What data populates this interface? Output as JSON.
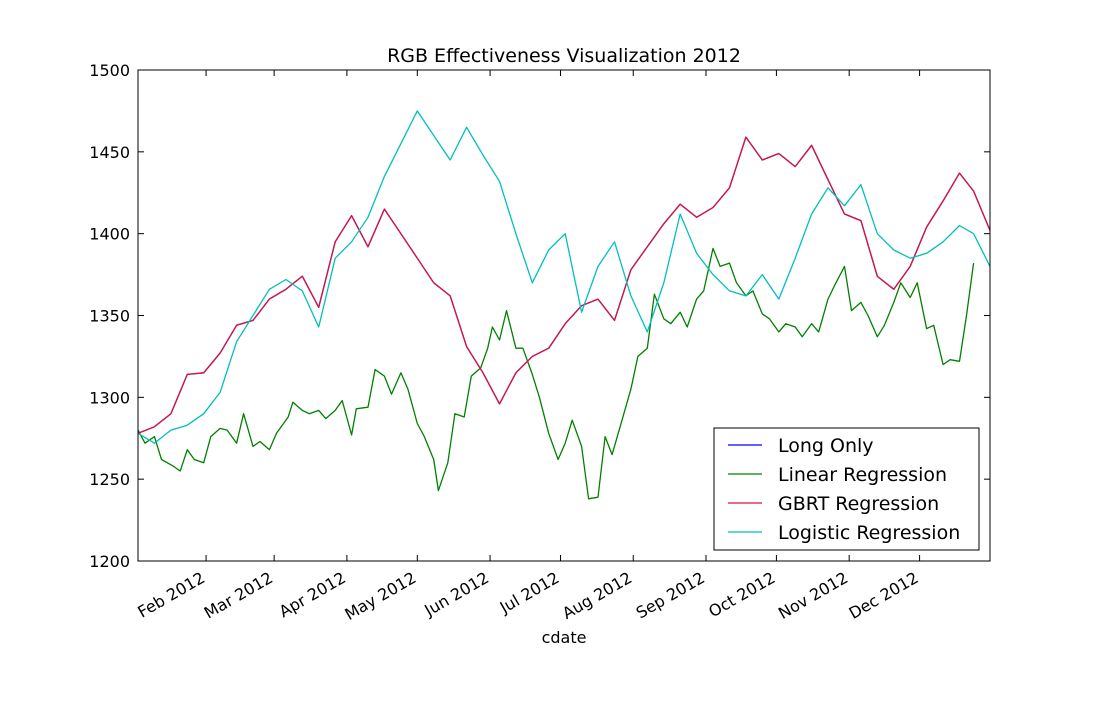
{
  "chart_data": {
    "type": "line",
    "title": "RGB Effectiveness Visualization 2012",
    "xlabel": "cdate",
    "ylabel": "",
    "ylim": [
      1200,
      1500
    ],
    "xlim": [
      "2012-01-03",
      "2012-12-31"
    ],
    "yticks": [
      1200,
      1250,
      1300,
      1350,
      1400,
      1450,
      1500
    ],
    "xticks": [
      {
        "date": "2012-02-01",
        "label": "Feb 2012"
      },
      {
        "date": "2012-03-01",
        "label": "Mar 2012"
      },
      {
        "date": "2012-04-01",
        "label": "Apr 2012"
      },
      {
        "date": "2012-05-01",
        "label": "May 2012"
      },
      {
        "date": "2012-06-01",
        "label": "Jun 2012"
      },
      {
        "date": "2012-07-01",
        "label": "Jul 2012"
      },
      {
        "date": "2012-08-01",
        "label": "Aug 2012"
      },
      {
        "date": "2012-09-01",
        "label": "Sep 2012"
      },
      {
        "date": "2012-10-01",
        "label": "Oct 2012"
      },
      {
        "date": "2012-11-01",
        "label": "Nov 2012"
      },
      {
        "date": "2012-12-01",
        "label": "Dec 2012"
      }
    ],
    "grid": false,
    "legend_position": "lower right",
    "series": [
      {
        "name": "Long Only",
        "color": "#0000ff",
        "points": [
          [
            "2012-01-03",
            1278
          ],
          [
            "2012-01-10",
            1282
          ],
          [
            "2012-01-17",
            1290
          ],
          [
            "2012-01-24",
            1314
          ],
          [
            "2012-01-31",
            1315
          ],
          [
            "2012-02-07",
            1327
          ],
          [
            "2012-02-14",
            1344
          ],
          [
            "2012-02-21",
            1347
          ],
          [
            "2012-02-28",
            1360
          ],
          [
            "2012-03-06",
            1366
          ],
          [
            "2012-03-13",
            1374
          ],
          [
            "2012-03-20",
            1355
          ],
          [
            "2012-03-27",
            1395
          ],
          [
            "2012-04-03",
            1411
          ],
          [
            "2012-04-10",
            1392
          ],
          [
            "2012-04-17",
            1415
          ],
          [
            "2012-04-24",
            1400
          ],
          [
            "2012-05-01",
            1385
          ],
          [
            "2012-05-08",
            1370
          ],
          [
            "2012-05-15",
            1362
          ],
          [
            "2012-05-22",
            1331
          ],
          [
            "2012-05-29",
            1315
          ],
          [
            "2012-06-05",
            1296
          ],
          [
            "2012-06-12",
            1315
          ],
          [
            "2012-06-19",
            1325
          ],
          [
            "2012-06-26",
            1330
          ],
          [
            "2012-07-03",
            1345
          ],
          [
            "2012-07-10",
            1356
          ],
          [
            "2012-07-17",
            1360
          ],
          [
            "2012-07-24",
            1347
          ],
          [
            "2012-07-31",
            1378
          ],
          [
            "2012-08-07",
            1392
          ],
          [
            "2012-08-14",
            1406
          ],
          [
            "2012-08-21",
            1418
          ],
          [
            "2012-08-28",
            1410
          ],
          [
            "2012-09-04",
            1416
          ],
          [
            "2012-09-11",
            1428
          ],
          [
            "2012-09-18",
            1459
          ],
          [
            "2012-09-25",
            1445
          ],
          [
            "2012-10-02",
            1449
          ],
          [
            "2012-10-09",
            1441
          ],
          [
            "2012-10-16",
            1454
          ],
          [
            "2012-10-23",
            1433
          ],
          [
            "2012-10-30",
            1412
          ],
          [
            "2012-11-06",
            1408
          ],
          [
            "2012-11-13",
            1374
          ],
          [
            "2012-11-20",
            1366
          ],
          [
            "2012-11-27",
            1380
          ],
          [
            "2012-12-04",
            1404
          ],
          [
            "2012-12-11",
            1420
          ],
          [
            "2012-12-18",
            1437
          ],
          [
            "2012-12-24",
            1426
          ],
          [
            "2012-12-31",
            1402
          ]
        ]
      },
      {
        "name": "Linear Regression",
        "color": "#008000",
        "points": [
          [
            "2012-01-03",
            1280
          ],
          [
            "2012-01-06",
            1272
          ],
          [
            "2012-01-10",
            1276
          ],
          [
            "2012-01-13",
            1262
          ],
          [
            "2012-01-18",
            1258
          ],
          [
            "2012-01-21",
            1255
          ],
          [
            "2012-01-24",
            1268
          ],
          [
            "2012-01-27",
            1262
          ],
          [
            "2012-01-31",
            1260
          ],
          [
            "2012-02-03",
            1276
          ],
          [
            "2012-02-07",
            1281
          ],
          [
            "2012-02-10",
            1280
          ],
          [
            "2012-02-14",
            1272
          ],
          [
            "2012-02-17",
            1290
          ],
          [
            "2012-02-21",
            1270
          ],
          [
            "2012-02-24",
            1273
          ],
          [
            "2012-02-28",
            1268
          ],
          [
            "2012-03-02",
            1278
          ],
          [
            "2012-03-07",
            1288
          ],
          [
            "2012-03-09",
            1297
          ],
          [
            "2012-03-13",
            1292
          ],
          [
            "2012-03-16",
            1290
          ],
          [
            "2012-03-20",
            1292
          ],
          [
            "2012-03-23",
            1287
          ],
          [
            "2012-03-27",
            1292
          ],
          [
            "2012-03-30",
            1298
          ],
          [
            "2012-04-03",
            1277
          ],
          [
            "2012-04-05",
            1293
          ],
          [
            "2012-04-10",
            1294
          ],
          [
            "2012-04-13",
            1317
          ],
          [
            "2012-04-17",
            1313
          ],
          [
            "2012-04-20",
            1302
          ],
          [
            "2012-04-24",
            1315
          ],
          [
            "2012-04-27",
            1305
          ],
          [
            "2012-05-01",
            1284
          ],
          [
            "2012-05-04",
            1276
          ],
          [
            "2012-05-08",
            1262
          ],
          [
            "2012-05-10",
            1243
          ],
          [
            "2012-05-14",
            1260
          ],
          [
            "2012-05-17",
            1290
          ],
          [
            "2012-05-21",
            1288
          ],
          [
            "2012-05-24",
            1313
          ],
          [
            "2012-05-28",
            1318
          ],
          [
            "2012-05-31",
            1330
          ],
          [
            "2012-06-02",
            1343
          ],
          [
            "2012-06-05",
            1335
          ],
          [
            "2012-06-08",
            1353
          ],
          [
            "2012-06-12",
            1330
          ],
          [
            "2012-06-15",
            1330
          ],
          [
            "2012-06-19",
            1314
          ],
          [
            "2012-06-22",
            1300
          ],
          [
            "2012-06-26",
            1278
          ],
          [
            "2012-06-30",
            1262
          ],
          [
            "2012-07-03",
            1272
          ],
          [
            "2012-07-06",
            1286
          ],
          [
            "2012-07-10",
            1270
          ],
          [
            "2012-07-13",
            1238
          ],
          [
            "2012-07-17",
            1239
          ],
          [
            "2012-07-20",
            1276
          ],
          [
            "2012-07-23",
            1265
          ],
          [
            "2012-07-27",
            1285
          ],
          [
            "2012-07-31",
            1305
          ],
          [
            "2012-08-03",
            1325
          ],
          [
            "2012-08-07",
            1330
          ],
          [
            "2012-08-10",
            1363
          ],
          [
            "2012-08-14",
            1348
          ],
          [
            "2012-08-17",
            1345
          ],
          [
            "2012-08-21",
            1352
          ],
          [
            "2012-08-24",
            1343
          ],
          [
            "2012-08-28",
            1360
          ],
          [
            "2012-08-31",
            1365
          ],
          [
            "2012-09-04",
            1391
          ],
          [
            "2012-09-07",
            1380
          ],
          [
            "2012-09-11",
            1382
          ],
          [
            "2012-09-14",
            1370
          ],
          [
            "2012-09-18",
            1362
          ],
          [
            "2012-09-21",
            1365
          ],
          [
            "2012-09-25",
            1351
          ],
          [
            "2012-09-28",
            1348
          ],
          [
            "2012-10-02",
            1340
          ],
          [
            "2012-10-05",
            1345
          ],
          [
            "2012-10-09",
            1343
          ],
          [
            "2012-10-12",
            1337
          ],
          [
            "2012-10-16",
            1345
          ],
          [
            "2012-10-19",
            1340
          ],
          [
            "2012-10-23",
            1360
          ],
          [
            "2012-10-26",
            1369
          ],
          [
            "2012-10-30",
            1380
          ],
          [
            "2012-11-02",
            1353
          ],
          [
            "2012-11-06",
            1358
          ],
          [
            "2012-11-09",
            1350
          ],
          [
            "2012-11-13",
            1337
          ],
          [
            "2012-11-16",
            1344
          ],
          [
            "2012-11-20",
            1358
          ],
          [
            "2012-11-23",
            1370
          ],
          [
            "2012-11-27",
            1361
          ],
          [
            "2012-11-30",
            1370
          ],
          [
            "2012-12-04",
            1342
          ],
          [
            "2012-12-07",
            1344
          ],
          [
            "2012-12-11",
            1320
          ],
          [
            "2012-12-14",
            1323
          ],
          [
            "2012-12-18",
            1322
          ],
          [
            "2012-12-21",
            1350
          ],
          [
            "2012-12-24",
            1382
          ]
        ]
      },
      {
        "name": "GBRT Regression",
        "color": "#dc143c",
        "points": [
          [
            "2012-01-03",
            1278
          ],
          [
            "2012-01-10",
            1282
          ],
          [
            "2012-01-17",
            1290
          ],
          [
            "2012-01-24",
            1314
          ],
          [
            "2012-01-31",
            1315
          ],
          [
            "2012-02-07",
            1327
          ],
          [
            "2012-02-14",
            1344
          ],
          [
            "2012-02-21",
            1347
          ],
          [
            "2012-02-28",
            1360
          ],
          [
            "2012-03-06",
            1366
          ],
          [
            "2012-03-13",
            1374
          ],
          [
            "2012-03-20",
            1355
          ],
          [
            "2012-03-27",
            1395
          ],
          [
            "2012-04-03",
            1411
          ],
          [
            "2012-04-10",
            1392
          ],
          [
            "2012-04-17",
            1415
          ],
          [
            "2012-04-24",
            1400
          ],
          [
            "2012-05-01",
            1385
          ],
          [
            "2012-05-08",
            1370
          ],
          [
            "2012-05-15",
            1362
          ],
          [
            "2012-05-22",
            1331
          ],
          [
            "2012-05-29",
            1315
          ],
          [
            "2012-06-05",
            1296
          ],
          [
            "2012-06-12",
            1315
          ],
          [
            "2012-06-19",
            1325
          ],
          [
            "2012-06-26",
            1330
          ],
          [
            "2012-07-03",
            1345
          ],
          [
            "2012-07-10",
            1356
          ],
          [
            "2012-07-17",
            1360
          ],
          [
            "2012-07-24",
            1347
          ],
          [
            "2012-07-31",
            1378
          ],
          [
            "2012-08-07",
            1392
          ],
          [
            "2012-08-14",
            1406
          ],
          [
            "2012-08-21",
            1418
          ],
          [
            "2012-08-28",
            1410
          ],
          [
            "2012-09-04",
            1416
          ],
          [
            "2012-09-11",
            1428
          ],
          [
            "2012-09-18",
            1459
          ],
          [
            "2012-09-25",
            1445
          ],
          [
            "2012-10-02",
            1449
          ],
          [
            "2012-10-09",
            1441
          ],
          [
            "2012-10-16",
            1454
          ],
          [
            "2012-10-23",
            1433
          ],
          [
            "2012-10-30",
            1412
          ],
          [
            "2012-11-06",
            1408
          ],
          [
            "2012-11-13",
            1374
          ],
          [
            "2012-11-20",
            1366
          ],
          [
            "2012-11-27",
            1380
          ],
          [
            "2012-12-04",
            1404
          ],
          [
            "2012-12-11",
            1420
          ],
          [
            "2012-12-18",
            1437
          ],
          [
            "2012-12-24",
            1426
          ],
          [
            "2012-12-31",
            1402
          ]
        ]
      },
      {
        "name": "Logistic Regression",
        "color": "#00bfbf",
        "points": [
          [
            "2012-01-03",
            1278
          ],
          [
            "2012-01-10",
            1272
          ],
          [
            "2012-01-17",
            1280
          ],
          [
            "2012-01-24",
            1283
          ],
          [
            "2012-01-31",
            1290
          ],
          [
            "2012-02-07",
            1303
          ],
          [
            "2012-02-14",
            1334
          ],
          [
            "2012-02-21",
            1350
          ],
          [
            "2012-02-28",
            1366
          ],
          [
            "2012-03-06",
            1372
          ],
          [
            "2012-03-13",
            1365
          ],
          [
            "2012-03-20",
            1343
          ],
          [
            "2012-03-27",
            1385
          ],
          [
            "2012-04-03",
            1395
          ],
          [
            "2012-04-10",
            1410
          ],
          [
            "2012-04-17",
            1435
          ],
          [
            "2012-04-24",
            1455
          ],
          [
            "2012-05-01",
            1475
          ],
          [
            "2012-05-08",
            1460
          ],
          [
            "2012-05-15",
            1445
          ],
          [
            "2012-05-22",
            1465
          ],
          [
            "2012-05-29",
            1448
          ],
          [
            "2012-06-05",
            1432
          ],
          [
            "2012-06-12",
            1400
          ],
          [
            "2012-06-19",
            1370
          ],
          [
            "2012-06-26",
            1390
          ],
          [
            "2012-07-03",
            1400
          ],
          [
            "2012-07-10",
            1352
          ],
          [
            "2012-07-17",
            1380
          ],
          [
            "2012-07-24",
            1395
          ],
          [
            "2012-07-31",
            1362
          ],
          [
            "2012-08-07",
            1340
          ],
          [
            "2012-08-14",
            1370
          ],
          [
            "2012-08-21",
            1412
          ],
          [
            "2012-08-28",
            1388
          ],
          [
            "2012-09-04",
            1375
          ],
          [
            "2012-09-11",
            1365
          ],
          [
            "2012-09-18",
            1362
          ],
          [
            "2012-09-25",
            1375
          ],
          [
            "2012-10-02",
            1360
          ],
          [
            "2012-10-09",
            1385
          ],
          [
            "2012-10-16",
            1412
          ],
          [
            "2012-10-23",
            1428
          ],
          [
            "2012-10-30",
            1417
          ],
          [
            "2012-11-06",
            1430
          ],
          [
            "2012-11-13",
            1400
          ],
          [
            "2012-11-20",
            1390
          ],
          [
            "2012-11-27",
            1385
          ],
          [
            "2012-12-04",
            1388
          ],
          [
            "2012-12-11",
            1395
          ],
          [
            "2012-12-18",
            1405
          ],
          [
            "2012-12-24",
            1400
          ],
          [
            "2012-12-31",
            1380
          ]
        ]
      }
    ]
  }
}
